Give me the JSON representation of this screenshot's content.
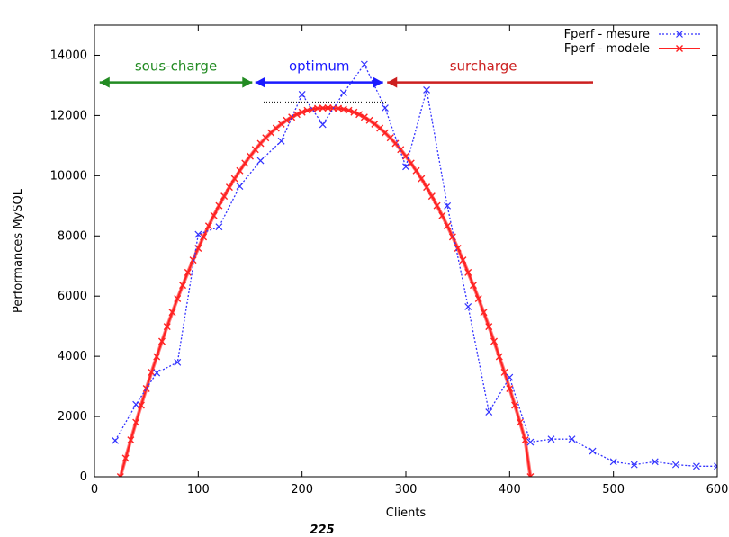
{
  "chart_data": {
    "type": "line",
    "xlabel": "Clients",
    "ylabel": "Performances MySQL",
    "xlim": [
      0,
      600
    ],
    "ylim": [
      0,
      15000
    ],
    "x_ticks": [
      "0",
      "100",
      "200",
      "300",
      "400",
      "500",
      "600"
    ],
    "y_ticks": [
      "0",
      "2000",
      "4000",
      "6000",
      "8000",
      "10000",
      "12000",
      "14000"
    ],
    "legend_position": "top-right",
    "series": [
      {
        "name": "Fperf - mesure",
        "color": "#3333ff",
        "style": "dotted-line-with-x-markers",
        "x": [
          20,
          40,
          60,
          80,
          100,
          120,
          140,
          160,
          180,
          200,
          220,
          240,
          260,
          280,
          300,
          320,
          340,
          360,
          380,
          400,
          420,
          440,
          460,
          480,
          500,
          520,
          540,
          560,
          580,
          600
        ],
        "y": [
          1200,
          2400,
          3450,
          3800,
          8050,
          8300,
          9650,
          10500,
          11150,
          12700,
          11700,
          12750,
          13700,
          12250,
          10300,
          12850,
          9000,
          5650,
          2150,
          3300,
          1150,
          1250,
          1250,
          850,
          500,
          400,
          500,
          400,
          350,
          350
        ]
      },
      {
        "name": "Fperf - modele",
        "color": "#ff2222",
        "style": "thick-line-with-x-markers",
        "x": [
          25,
          30,
          35,
          40,
          45,
          50,
          55,
          60,
          65,
          70,
          75,
          80,
          85,
          90,
          95,
          100,
          105,
          110,
          115,
          120,
          125,
          130,
          135,
          140,
          145,
          150,
          155,
          160,
          165,
          170,
          175,
          180,
          185,
          190,
          195,
          200,
          205,
          210,
          215,
          220,
          225,
          230,
          235,
          240,
          245,
          250,
          255,
          260,
          265,
          270,
          275,
          280,
          285,
          290,
          295,
          300,
          305,
          310,
          315,
          320,
          325,
          330,
          335,
          340,
          345,
          350,
          355,
          360,
          365,
          370,
          375,
          380,
          385,
          390,
          395,
          400,
          405,
          410,
          415,
          420
        ],
        "y": [
          0,
          618,
          1220,
          1806,
          2376,
          2930,
          3468,
          3990,
          4496,
          4986,
          5460,
          5918,
          6360,
          6786,
          7196,
          7590,
          7968,
          8330,
          8676,
          9006,
          9320,
          9618,
          9900,
          10166,
          10416,
          10650,
          10868,
          11070,
          11256,
          11426,
          11580,
          11718,
          11840,
          11946,
          12036,
          12110,
          12168,
          12210,
          12236,
          12246,
          12250,
          12246,
          12236,
          12210,
          12168,
          12110,
          12036,
          11946,
          11840,
          11718,
          11580,
          11426,
          11256,
          11070,
          10868,
          10650,
          10416,
          10166,
          9900,
          9618,
          9320,
          9006,
          8676,
          8330,
          7968,
          7590,
          7196,
          6786,
          6360,
          5918,
          5460,
          4986,
          4496,
          3990,
          3468,
          2930,
          2376,
          1806,
          1220,
          0
        ]
      }
    ],
    "annotations": {
      "zones": [
        {
          "label": "sous-charge",
          "color": "#228b22",
          "x_start": 5,
          "x_end": 152,
          "y": 13100
        },
        {
          "label": "optimum",
          "color": "#1a1aff",
          "x_start": 155,
          "x_end": 278,
          "y": 13100
        },
        {
          "label": "surcharge",
          "color": "#cc1f1f",
          "x_start": 282,
          "x_end": 476,
          "y": 13100,
          "dashed_extension_to": 500
        }
      ],
      "optimum_x": 225,
      "optimum_label": "225",
      "optimum_y": 12450,
      "optimum_hline_from": 163,
      "optimum_hline_to": 282
    }
  }
}
